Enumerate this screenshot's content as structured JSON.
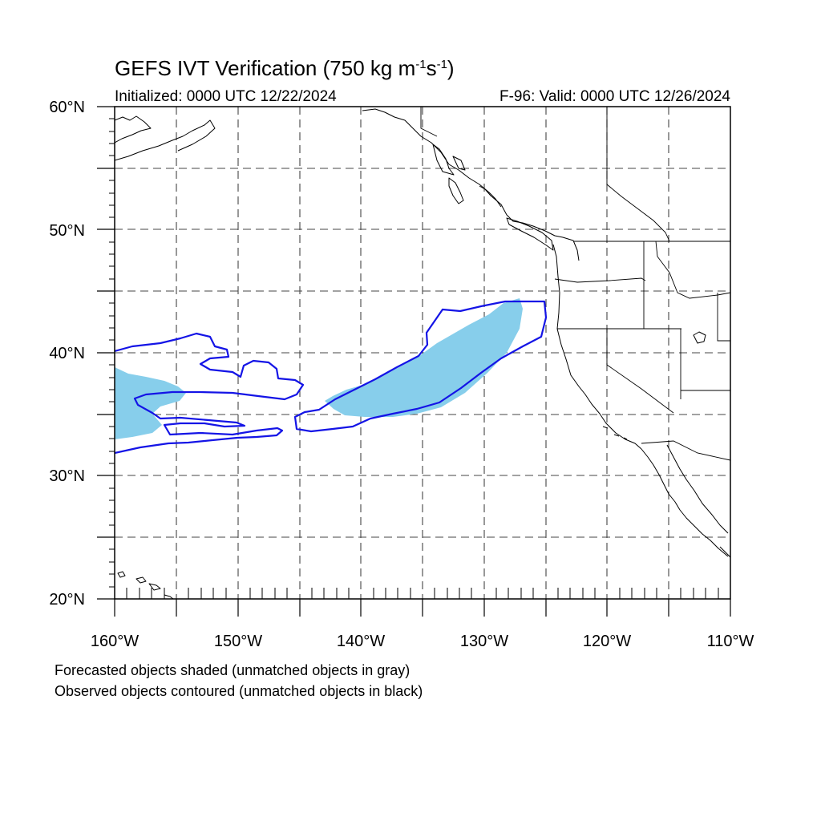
{
  "header": {
    "title_main": "GEFS IVT Verification (750 kg m",
    "title_sup1": "-1",
    "title_mid": "s",
    "title_sup2": "-1",
    "title_end": ")",
    "initialized": "Initialized: 0000 UTC 12/22/2024",
    "valid": "F-96: Valid: 0000 UTC 12/26/2024"
  },
  "axes": {
    "lat_labels": [
      "20°N",
      "30°N",
      "40°N",
      "50°N",
      "60°N"
    ],
    "lon_labels": [
      "160°W",
      "150°W",
      "140°W",
      "130°W",
      "120°W",
      "110°W"
    ],
    "lat_range": [
      20,
      60
    ],
    "lon_range": [
      -160,
      -110
    ],
    "grid": "dashed, every 5 degrees"
  },
  "legend": {
    "line1": "Forecasted objects shaded (unmatched objects in gray)",
    "line2": "Observed objects contoured (unmatched objects in black)"
  },
  "colors": {
    "forecast_fill": "#87ceeb",
    "observed_contour": "#1414e6",
    "coastline": "#000000",
    "grid": "#444444"
  }
}
